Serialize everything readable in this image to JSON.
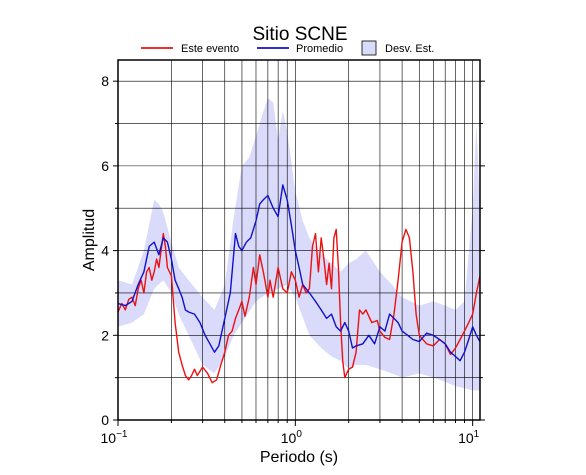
{
  "chart_data": {
    "type": "line",
    "title": "Sitio SCNE",
    "xlabel": "Periodo (s)",
    "ylabel": "Amplitud",
    "xscale": "log",
    "xlim": [
      0.1,
      11
    ],
    "ylim": [
      0,
      8.5
    ],
    "yticks": [
      {
        "value": 0,
        "label": "0"
      },
      {
        "value": 2,
        "label": "2"
      },
      {
        "value": 4,
        "label": "4"
      },
      {
        "value": 6,
        "label": "6"
      },
      {
        "value": 8,
        "label": "8"
      }
    ],
    "xticks": [
      {
        "value": 0.1,
        "base": "10",
        "exp": "−1"
      },
      {
        "value": 1,
        "base": "10",
        "exp": "0"
      },
      {
        "value": 10,
        "base": "10",
        "exp": "1"
      }
    ],
    "grid": true,
    "legend_position": "top",
    "series": [
      {
        "name": "Este evento",
        "color": "#ee1111",
        "points": [
          [
            0.1,
            2.55
          ],
          [
            0.105,
            2.75
          ],
          [
            0.11,
            2.6
          ],
          [
            0.115,
            2.85
          ],
          [
            0.12,
            2.9
          ],
          [
            0.125,
            2.7
          ],
          [
            0.13,
            3.1
          ],
          [
            0.135,
            3.3
          ],
          [
            0.14,
            3.0
          ],
          [
            0.145,
            3.5
          ],
          [
            0.15,
            3.6
          ],
          [
            0.155,
            3.3
          ],
          [
            0.16,
            3.5
          ],
          [
            0.165,
            3.8
          ],
          [
            0.17,
            3.6
          ],
          [
            0.175,
            4.0
          ],
          [
            0.18,
            4.4
          ],
          [
            0.185,
            4.1
          ],
          [
            0.19,
            3.6
          ],
          [
            0.2,
            3.4
          ],
          [
            0.21,
            2.3
          ],
          [
            0.22,
            1.6
          ],
          [
            0.23,
            1.3
          ],
          [
            0.24,
            1.05
          ],
          [
            0.25,
            0.95
          ],
          [
            0.26,
            1.05
          ],
          [
            0.27,
            1.2
          ],
          [
            0.28,
            1.05
          ],
          [
            0.3,
            1.25
          ],
          [
            0.32,
            1.1
          ],
          [
            0.34,
            0.88
          ],
          [
            0.36,
            0.95
          ],
          [
            0.38,
            1.3
          ],
          [
            0.4,
            1.6
          ],
          [
            0.42,
            2.0
          ],
          [
            0.44,
            2.1
          ],
          [
            0.46,
            2.4
          ],
          [
            0.48,
            2.6
          ],
          [
            0.5,
            2.8
          ],
          [
            0.52,
            2.45
          ],
          [
            0.55,
            2.9
          ],
          [
            0.58,
            3.6
          ],
          [
            0.6,
            3.2
          ],
          [
            0.63,
            3.9
          ],
          [
            0.66,
            3.5
          ],
          [
            0.7,
            2.9
          ],
          [
            0.72,
            3.3
          ],
          [
            0.75,
            2.9
          ],
          [
            0.8,
            3.6
          ],
          [
            0.85,
            3.1
          ],
          [
            0.9,
            3.0
          ],
          [
            0.95,
            3.5
          ],
          [
            1.0,
            3.3
          ],
          [
            1.05,
            2.9
          ],
          [
            1.1,
            3.2
          ],
          [
            1.15,
            3.0
          ],
          [
            1.2,
            3.1
          ],
          [
            1.25,
            4.1
          ],
          [
            1.3,
            4.4
          ],
          [
            1.35,
            3.5
          ],
          [
            1.4,
            4.3
          ],
          [
            1.45,
            3.8
          ],
          [
            1.5,
            3.2
          ],
          [
            1.55,
            3.7
          ],
          [
            1.6,
            3.1
          ],
          [
            1.65,
            4.3
          ],
          [
            1.7,
            4.5
          ],
          [
            1.75,
            3.6
          ],
          [
            1.8,
            2.3
          ],
          [
            1.85,
            1.4
          ],
          [
            1.9,
            1.0
          ],
          [
            2.0,
            1.2
          ],
          [
            2.1,
            1.25
          ],
          [
            2.2,
            1.6
          ],
          [
            2.3,
            2.6
          ],
          [
            2.4,
            2.5
          ],
          [
            2.5,
            2.6
          ],
          [
            2.7,
            2.3
          ],
          [
            2.9,
            2.35
          ],
          [
            3.0,
            2.1
          ],
          [
            3.2,
            1.95
          ],
          [
            3.4,
            1.9
          ],
          [
            3.6,
            2.5
          ],
          [
            3.8,
            3.3
          ],
          [
            4.0,
            4.2
          ],
          [
            4.2,
            4.5
          ],
          [
            4.4,
            4.3
          ],
          [
            4.6,
            3.5
          ],
          [
            4.8,
            2.5
          ],
          [
            5.0,
            2.0
          ],
          [
            5.5,
            1.8
          ],
          [
            6.0,
            1.75
          ],
          [
            6.5,
            1.9
          ],
          [
            7.0,
            1.8
          ],
          [
            7.5,
            1.55
          ],
          [
            8.0,
            1.7
          ],
          [
            8.5,
            1.9
          ],
          [
            9.0,
            2.1
          ],
          [
            9.5,
            2.3
          ],
          [
            10.0,
            2.5
          ],
          [
            10.5,
            3.0
          ],
          [
            11.0,
            3.4
          ]
        ]
      },
      {
        "name": "Promedio",
        "color": "#1111cc",
        "points": [
          [
            0.1,
            2.75
          ],
          [
            0.11,
            2.7
          ],
          [
            0.12,
            2.8
          ],
          [
            0.13,
            3.2
          ],
          [
            0.14,
            3.5
          ],
          [
            0.15,
            4.1
          ],
          [
            0.16,
            4.2
          ],
          [
            0.17,
            3.9
          ],
          [
            0.18,
            4.3
          ],
          [
            0.19,
            4.2
          ],
          [
            0.2,
            3.8
          ],
          [
            0.21,
            3.3
          ],
          [
            0.22,
            3.1
          ],
          [
            0.23,
            2.9
          ],
          [
            0.24,
            2.6
          ],
          [
            0.25,
            2.55
          ],
          [
            0.27,
            2.5
          ],
          [
            0.29,
            2.3
          ],
          [
            0.31,
            2.0
          ],
          [
            0.33,
            1.8
          ],
          [
            0.35,
            1.6
          ],
          [
            0.37,
            1.75
          ],
          [
            0.4,
            2.4
          ],
          [
            0.43,
            3.0
          ],
          [
            0.46,
            4.4
          ],
          [
            0.48,
            4.1
          ],
          [
            0.5,
            4.0
          ],
          [
            0.53,
            4.2
          ],
          [
            0.56,
            4.3
          ],
          [
            0.6,
            4.7
          ],
          [
            0.63,
            5.1
          ],
          [
            0.66,
            5.2
          ],
          [
            0.7,
            5.3
          ],
          [
            0.75,
            5.0
          ],
          [
            0.8,
            4.8
          ],
          [
            0.85,
            5.55
          ],
          [
            0.9,
            5.2
          ],
          [
            0.95,
            4.6
          ],
          [
            1.0,
            4.0
          ],
          [
            1.05,
            3.6
          ],
          [
            1.1,
            3.2
          ],
          [
            1.2,
            3.0
          ],
          [
            1.3,
            2.8
          ],
          [
            1.4,
            2.6
          ],
          [
            1.5,
            2.4
          ],
          [
            1.6,
            2.5
          ],
          [
            1.7,
            2.2
          ],
          [
            1.8,
            2.1
          ],
          [
            1.9,
            2.3
          ],
          [
            2.0,
            2.1
          ],
          [
            2.1,
            1.7
          ],
          [
            2.2,
            1.75
          ],
          [
            2.4,
            1.8
          ],
          [
            2.6,
            2.0
          ],
          [
            2.8,
            1.8
          ],
          [
            3.0,
            2.2
          ],
          [
            3.2,
            2.1
          ],
          [
            3.4,
            2.5
          ],
          [
            3.6,
            2.4
          ],
          [
            3.8,
            2.3
          ],
          [
            4.0,
            2.1
          ],
          [
            4.3,
            2.0
          ],
          [
            4.6,
            1.9
          ],
          [
            5.0,
            1.85
          ],
          [
            5.5,
            2.05
          ],
          [
            6.0,
            2.0
          ],
          [
            6.5,
            1.9
          ],
          [
            7.0,
            1.8
          ],
          [
            7.5,
            1.6
          ],
          [
            8.0,
            1.5
          ],
          [
            8.5,
            1.4
          ],
          [
            9.0,
            1.6
          ],
          [
            9.5,
            1.9
          ],
          [
            10.0,
            2.2
          ],
          [
            10.5,
            2.0
          ],
          [
            11.0,
            1.85
          ]
        ]
      }
    ],
    "band": {
      "name": "Desv. Est.",
      "color": "#dadafa",
      "edge": "#000000",
      "upper": [
        [
          0.1,
          3.3
        ],
        [
          0.12,
          3.2
        ],
        [
          0.14,
          4.0
        ],
        [
          0.16,
          5.2
        ],
        [
          0.17,
          5.1
        ],
        [
          0.18,
          4.9
        ],
        [
          0.2,
          4.2
        ],
        [
          0.22,
          3.6
        ],
        [
          0.25,
          3.3
        ],
        [
          0.3,
          2.9
        ],
        [
          0.35,
          2.6
        ],
        [
          0.4,
          3.2
        ],
        [
          0.45,
          4.8
        ],
        [
          0.5,
          6.0
        ],
        [
          0.55,
          6.2
        ],
        [
          0.6,
          6.7
        ],
        [
          0.65,
          7.2
        ],
        [
          0.7,
          7.6
        ],
        [
          0.75,
          7.5
        ],
        [
          0.8,
          6.6
        ],
        [
          0.85,
          7.3
        ],
        [
          0.9,
          6.8
        ],
        [
          1.0,
          5.4
        ],
        [
          1.1,
          4.7
        ],
        [
          1.2,
          4.3
        ],
        [
          1.4,
          3.9
        ],
        [
          1.6,
          3.7
        ],
        [
          1.8,
          3.5
        ],
        [
          2.0,
          3.7
        ],
        [
          2.2,
          3.8
        ],
        [
          2.5,
          4.0
        ],
        [
          3.0,
          3.5
        ],
        [
          3.5,
          3.2
        ],
        [
          4.0,
          2.9
        ],
        [
          5.0,
          2.7
        ],
        [
          6.0,
          2.8
        ],
        [
          7.0,
          2.7
        ],
        [
          8.0,
          2.6
        ],
        [
          9.0,
          2.8
        ],
        [
          10.0,
          5.0
        ],
        [
          10.5,
          7.0
        ],
        [
          11.0,
          5.0
        ]
      ],
      "lower": [
        [
          0.1,
          2.2
        ],
        [
          0.12,
          2.3
        ],
        [
          0.14,
          2.5
        ],
        [
          0.16,
          3.1
        ],
        [
          0.18,
          3.3
        ],
        [
          0.2,
          3.0
        ],
        [
          0.22,
          2.5
        ],
        [
          0.25,
          2.0
        ],
        [
          0.3,
          1.3
        ],
        [
          0.35,
          1.1
        ],
        [
          0.4,
          1.5
        ],
        [
          0.45,
          2.0
        ],
        [
          0.5,
          2.3
        ],
        [
          0.6,
          2.8
        ],
        [
          0.7,
          3.0
        ],
        [
          0.8,
          3.1
        ],
        [
          0.9,
          3.2
        ],
        [
          1.0,
          2.9
        ],
        [
          1.2,
          2.0
        ],
        [
          1.4,
          1.7
        ],
        [
          1.6,
          1.5
        ],
        [
          1.8,
          1.4
        ],
        [
          2.0,
          1.2
        ],
        [
          2.2,
          1.3
        ],
        [
          2.5,
          1.3
        ],
        [
          3.0,
          1.2
        ],
        [
          3.5,
          1.1
        ],
        [
          4.0,
          1.0
        ],
        [
          5.0,
          1.1
        ],
        [
          6.0,
          1.0
        ],
        [
          7.0,
          0.9
        ],
        [
          8.0,
          0.8
        ],
        [
          9.0,
          0.75
        ],
        [
          10.0,
          0.7
        ],
        [
          11.0,
          0.7
        ]
      ]
    }
  }
}
